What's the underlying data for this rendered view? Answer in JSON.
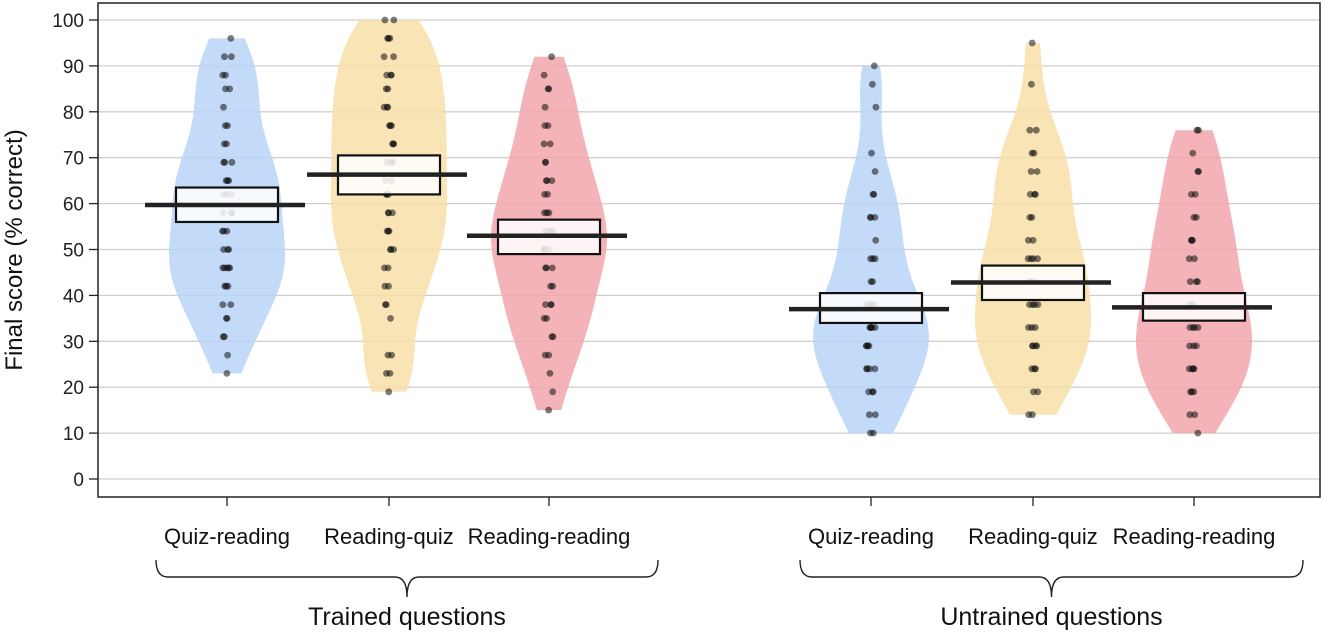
{
  "chart_data": {
    "type": "pirate-plot",
    "ylabel": "Final score (% correct)",
    "ylim": [
      0,
      100
    ],
    "yticks": [
      0,
      10,
      20,
      30,
      40,
      50,
      60,
      70,
      80,
      90,
      100
    ],
    "grid": true,
    "groups": [
      {
        "name": "Trained questions",
        "conditions": [
          {
            "label": "Quiz-reading",
            "color": "#b9d3f7",
            "mean": 59.7,
            "ci": [
              56.0,
              63.5
            ],
            "range": [
              23,
              96
            ],
            "points": [
              23,
              27,
              31,
              31,
              35,
              35,
              38,
              38,
              42,
              42,
              42,
              46,
              46,
              46,
              46,
              46,
              50,
              50,
              50,
              54,
              54,
              54,
              58,
              58,
              58,
              62,
              62,
              62,
              65,
              65,
              65,
              69,
              69,
              69,
              73,
              73,
              77,
              77,
              81,
              85,
              85,
              88,
              88,
              92,
              92,
              96
            ]
          },
          {
            "label": "Reading-quiz",
            "color": "#f7dfa8",
            "mean": 66.3,
            "ci": [
              62.0,
              70.5
            ],
            "range": [
              19,
              100
            ],
            "points": [
              19,
              23,
              23,
              27,
              27,
              35,
              38,
              38,
              42,
              42,
              46,
              46,
              50,
              50,
              50,
              54,
              54,
              54,
              58,
              58,
              58,
              62,
              62,
              62,
              65,
              65,
              69,
              69,
              69,
              73,
              73,
              73,
              77,
              77,
              77,
              81,
              81,
              81,
              85,
              85,
              88,
              88,
              88,
              92,
              92,
              96,
              96,
              96,
              100,
              100
            ]
          },
          {
            "label": "Reading-reading",
            "color": "#f2a6ab",
            "mean": 53.0,
            "ci": [
              49.0,
              56.5
            ],
            "range": [
              15,
              92
            ],
            "points": [
              15,
              19,
              23,
              27,
              27,
              31,
              31,
              35,
              35,
              38,
              38,
              38,
              42,
              42,
              46,
              46,
              46,
              50,
              50,
              50,
              50,
              54,
              54,
              54,
              54,
              58,
              58,
              58,
              62,
              62,
              65,
              65,
              65,
              69,
              69,
              73,
              73,
              77,
              77,
              81,
              85,
              85,
              88,
              92
            ]
          }
        ]
      },
      {
        "name": "Untrained questions",
        "conditions": [
          {
            "label": "Quiz-reading",
            "color": "#b9d3f7",
            "mean": 37.0,
            "ci": [
              34.0,
              40.5
            ],
            "range": [
              10,
              90
            ],
            "points": [
              10,
              10,
              14,
              14,
              19,
              19,
              19,
              24,
              24,
              24,
              24,
              29,
              29,
              29,
              29,
              33,
              33,
              33,
              33,
              33,
              38,
              38,
              38,
              38,
              43,
              43,
              48,
              48,
              48,
              52,
              57,
              57,
              57,
              62,
              62,
              67,
              71,
              81,
              86,
              90
            ]
          },
          {
            "label": "Reading-quiz",
            "color": "#f7dfa8",
            "mean": 42.8,
            "ci": [
              39.0,
              46.5
            ],
            "range": [
              14,
              95
            ],
            "points": [
              14,
              14,
              19,
              19,
              24,
              24,
              24,
              29,
              29,
              29,
              29,
              33,
              33,
              33,
              38,
              38,
              38,
              38,
              43,
              43,
              43,
              48,
              48,
              48,
              48,
              52,
              52,
              57,
              57,
              62,
              62,
              62,
              67,
              67,
              71,
              71,
              76,
              76,
              86,
              95
            ]
          },
          {
            "label": "Reading-reading",
            "color": "#f2a6ab",
            "mean": 37.4,
            "ci": [
              34.5,
              40.5
            ],
            "range": [
              10,
              76
            ],
            "points": [
              10,
              14,
              14,
              19,
              19,
              19,
              24,
              24,
              24,
              24,
              29,
              29,
              29,
              33,
              33,
              33,
              33,
              38,
              38,
              38,
              43,
              43,
              43,
              48,
              48,
              52,
              52,
              52,
              57,
              57,
              62,
              62,
              67,
              67,
              71,
              76,
              76
            ]
          }
        ]
      }
    ]
  }
}
